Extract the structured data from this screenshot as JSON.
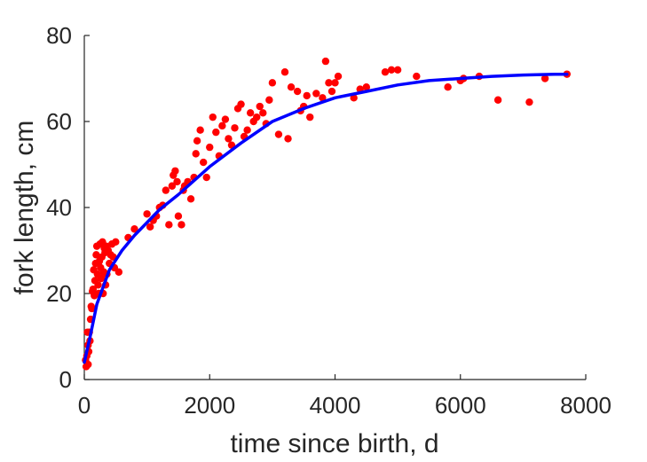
{
  "chart_data": {
    "type": "scatter",
    "xlabel": "time since birth, d",
    "ylabel": "fork length, cm",
    "xlim": [
      0,
      8000
    ],
    "ylim": [
      0,
      80
    ],
    "xticks": [
      "0",
      "2000",
      "4000",
      "6000",
      "8000"
    ],
    "yticks": [
      "0",
      "20",
      "40",
      "60",
      "80"
    ],
    "grid": false,
    "colors": {
      "points": "#ff0000",
      "fit": "#0000ff",
      "axis": "#262626"
    },
    "series": [
      {
        "kind": "points",
        "x": [
          20,
          30,
          40,
          50,
          60,
          60,
          70,
          80,
          90,
          100,
          110,
          120,
          130,
          140,
          150,
          160,
          170,
          180,
          190,
          200,
          210,
          220,
          230,
          240,
          250,
          260,
          270,
          280,
          290,
          300,
          310,
          320,
          330,
          340,
          350,
          360,
          380,
          400,
          420,
          440,
          460,
          480,
          500,
          550,
          700,
          800,
          1000,
          1050,
          1100,
          1150,
          1200,
          1250,
          1300,
          1350,
          1400,
          1420,
          1450,
          1480,
          1500,
          1550,
          1580,
          1600,
          1650,
          1700,
          1750,
          1780,
          1800,
          1850,
          1900,
          1950,
          2000,
          2050,
          2100,
          2150,
          2200,
          2250,
          2300,
          2350,
          2400,
          2450,
          2500,
          2550,
          2600,
          2650,
          2700,
          2750,
          2800,
          2850,
          2900,
          2950,
          3000,
          3100,
          3200,
          3250,
          3300,
          3400,
          3450,
          3500,
          3550,
          3600,
          3700,
          3800,
          3850,
          3900,
          3950,
          4000,
          4050,
          4300,
          4400,
          4500,
          4800,
          4900,
          5000,
          5300,
          5800,
          6000,
          6050,
          6300,
          6600,
          7100,
          7350,
          7700
        ],
        "y": [
          4.5,
          3,
          5.5,
          11,
          8,
          3.5,
          6.5,
          11,
          9,
          14,
          17,
          16.5,
          20.5,
          21,
          25.5,
          19.5,
          23,
          27,
          29,
          31,
          24.5,
          22,
          20,
          27.5,
          31.5,
          26,
          23.5,
          28.5,
          32,
          20,
          25,
          30.5,
          29.5,
          22,
          31,
          24.5,
          30,
          27,
          29,
          31.5,
          28.5,
          26,
          32,
          25,
          33,
          35,
          38.5,
          35.5,
          37,
          38,
          40,
          40.5,
          44,
          36,
          45,
          47.5,
          48.5,
          46,
          38,
          36,
          44,
          45,
          46,
          42,
          47,
          52.5,
          55.5,
          58,
          50.5,
          47,
          54,
          61,
          57.5,
          52,
          59,
          60.5,
          56,
          54.5,
          58.5,
          63,
          64,
          56.5,
          58,
          62,
          60,
          61,
          63.5,
          62,
          59.5,
          65,
          69,
          57,
          71.5,
          56,
          68,
          67,
          62.5,
          63.5,
          66,
          61,
          66.5,
          65.5,
          74,
          69,
          67,
          69,
          70.5,
          65.5,
          67.5,
          68,
          71.5,
          72,
          72,
          70.5,
          68,
          69.5,
          70,
          70.5,
          65,
          64.5,
          70,
          71
        ]
      },
      {
        "kind": "fitted-curve",
        "x": [
          0,
          100,
          200,
          400,
          600,
          800,
          1000,
          1200,
          1500,
          2000,
          2500,
          3000,
          3500,
          4000,
          4500,
          5000,
          5500,
          6000,
          6500,
          7000,
          7500,
          7700
        ],
        "y": [
          4,
          10.5,
          17.5,
          25.5,
          30,
          33.5,
          36.5,
          39.5,
          43,
          49.5,
          55,
          60,
          63,
          65.5,
          67,
          68.5,
          69.5,
          70,
          70.5,
          70.8,
          71,
          71
        ]
      }
    ]
  }
}
